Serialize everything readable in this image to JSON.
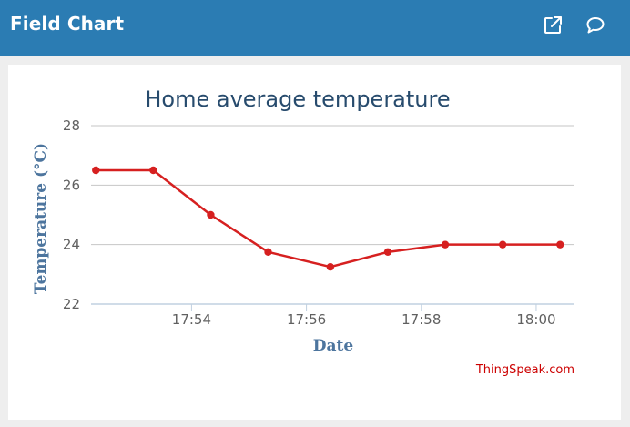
{
  "header": {
    "title": "Field Chart",
    "open_icon": "external-link-icon",
    "comment_icon": "comment-bubble-icon"
  },
  "colors": {
    "header_bg": "#2b7cb3",
    "series": "#d62020",
    "title_text": "#274b6d",
    "axis_title": "#4d759e",
    "credit": "#cc0000"
  },
  "credit": "ThingSpeak.com",
  "chart_data": {
    "type": "line",
    "title": "Home average temperature",
    "xlabel": "Date",
    "ylabel": "Temperature (°C)",
    "ylim": [
      22,
      28
    ],
    "xlim": [
      "17:52:15",
      "18:00:40"
    ],
    "y_ticks": [
      22,
      24,
      26,
      28
    ],
    "x_ticks": [
      "17:54",
      "17:56",
      "17:58",
      "18:00"
    ],
    "grid": true,
    "legend": "none",
    "series": [
      {
        "x": [
          "17:52:20",
          "17:53:20",
          "17:54:20",
          "17:55:20",
          "17:56:25",
          "17:57:25",
          "17:58:25",
          "17:59:25",
          "18:00:25"
        ],
        "values": [
          26.5,
          26.5,
          25.0,
          23.75,
          23.25,
          23.75,
          24.0,
          24.0,
          24.0
        ]
      }
    ]
  }
}
